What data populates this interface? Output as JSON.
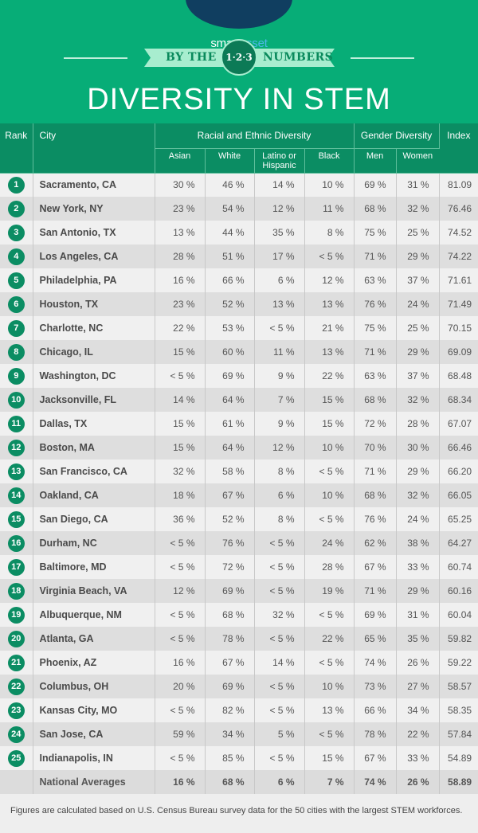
{
  "header": {
    "logo": {
      "smart": "smart",
      "asset": "asset"
    },
    "ribbon_left": "BY THE",
    "ribbon_badge": "1·2·3",
    "ribbon_right": "NUMBERS",
    "title": "DIVERSITY IN STEM"
  },
  "colors": {
    "primary_green": "#07ad77",
    "table_header": "#0b8d63",
    "logo_navy": "#103e60",
    "ribbon": "#a8edcf"
  },
  "table": {
    "headers": {
      "rank": "Rank",
      "city": "City",
      "racial_group": "Racial and Ethnic Diversity",
      "gender_group": "Gender Diversity",
      "index": "Index",
      "asian": "Asian",
      "white": "White",
      "latino": "Latino or Hispanic",
      "black": "Black",
      "men": "Men",
      "women": "Women"
    },
    "rows": [
      {
        "rank": "1",
        "city": "Sacramento, CA",
        "asian": "30 %",
        "white": "46 %",
        "latino": "14 %",
        "black": "10 %",
        "men": "69 %",
        "women": "31 %",
        "index": "81.09"
      },
      {
        "rank": "2",
        "city": "New York, NY",
        "asian": "23 %",
        "white": "54 %",
        "latino": "12 %",
        "black": "11 %",
        "men": "68 %",
        "women": "32 %",
        "index": "76.46"
      },
      {
        "rank": "3",
        "city": "San Antonio, TX",
        "asian": "13 %",
        "white": "44 %",
        "latino": "35 %",
        "black": "8 %",
        "men": "75 %",
        "women": "25 %",
        "index": "74.52"
      },
      {
        "rank": "4",
        "city": "Los Angeles, CA",
        "asian": "28 %",
        "white": "51 %",
        "latino": "17 %",
        "black": "< 5 %",
        "men": "71 %",
        "women": "29 %",
        "index": "74.22"
      },
      {
        "rank": "5",
        "city": "Philadelphia, PA",
        "asian": "16 %",
        "white": "66 %",
        "latino": "6 %",
        "black": "12 %",
        "men": "63 %",
        "women": "37 %",
        "index": "71.61"
      },
      {
        "rank": "6",
        "city": "Houston, TX",
        "asian": "23 %",
        "white": "52 %",
        "latino": "13 %",
        "black": "13 %",
        "men": "76 %",
        "women": "24 %",
        "index": "71.49"
      },
      {
        "rank": "7",
        "city": "Charlotte, NC",
        "asian": "22 %",
        "white": "53 %",
        "latino": "< 5 %",
        "black": "21 %",
        "men": "75 %",
        "women": "25 %",
        "index": "70.15"
      },
      {
        "rank": "8",
        "city": "Chicago, IL",
        "asian": "15 %",
        "white": "60 %",
        "latino": "11 %",
        "black": "13 %",
        "men": "71 %",
        "women": "29 %",
        "index": "69.09"
      },
      {
        "rank": "9",
        "city": "Washington, DC",
        "asian": "< 5 %",
        "white": "69 %",
        "latino": "9 %",
        "black": "22 %",
        "men": "63 %",
        "women": "37 %",
        "index": "68.48"
      },
      {
        "rank": "10",
        "city": "Jacksonville, FL",
        "asian": "14 %",
        "white": "64 %",
        "latino": "7 %",
        "black": "15 %",
        "men": "68 %",
        "women": "32 %",
        "index": "68.34"
      },
      {
        "rank": "11",
        "city": "Dallas, TX",
        "asian": "15 %",
        "white": "61 %",
        "latino": "9 %",
        "black": "15 %",
        "men": "72 %",
        "women": "28 %",
        "index": "67.07"
      },
      {
        "rank": "12",
        "city": "Boston, MA",
        "asian": "15 %",
        "white": "64 %",
        "latino": "12 %",
        "black": "10 %",
        "men": "70 %",
        "women": "30 %",
        "index": "66.46"
      },
      {
        "rank": "13",
        "city": "San Francisco, CA",
        "asian": "32 %",
        "white": "58 %",
        "latino": "8 %",
        "black": "< 5 %",
        "men": "71 %",
        "women": "29 %",
        "index": "66.20"
      },
      {
        "rank": "14",
        "city": "Oakland, CA",
        "asian": "18 %",
        "white": "67 %",
        "latino": "6 %",
        "black": "10 %",
        "men": "68 %",
        "women": "32 %",
        "index": "66.05"
      },
      {
        "rank": "15",
        "city": "San Diego, CA",
        "asian": "36 %",
        "white": "52 %",
        "latino": "8 %",
        "black": "< 5 %",
        "men": "76 %",
        "women": "24 %",
        "index": "65.25"
      },
      {
        "rank": "16",
        "city": "Durham, NC",
        "asian": "< 5 %",
        "white": "76 %",
        "latino": "< 5 %",
        "black": "24 %",
        "men": "62 %",
        "women": "38 %",
        "index": "64.27"
      },
      {
        "rank": "17",
        "city": "Baltimore, MD",
        "asian": "< 5 %",
        "white": "72 %",
        "latino": "< 5 %",
        "black": "28 %",
        "men": "67 %",
        "women": "33 %",
        "index": "60.74"
      },
      {
        "rank": "18",
        "city": "Virginia Beach, VA",
        "asian": "12 %",
        "white": "69 %",
        "latino": "< 5 %",
        "black": "19 %",
        "men": "71 %",
        "women": "29 %",
        "index": "60.16"
      },
      {
        "rank": "19",
        "city": "Albuquerque, NM",
        "asian": "< 5 %",
        "white": "68 %",
        "latino": "32 %",
        "black": "< 5 %",
        "men": "69 %",
        "women": "31 %",
        "index": "60.04"
      },
      {
        "rank": "20",
        "city": "Atlanta, GA",
        "asian": "< 5 %",
        "white": "78 %",
        "latino": "< 5 %",
        "black": "22 %",
        "men": "65 %",
        "women": "35 %",
        "index": "59.82"
      },
      {
        "rank": "21",
        "city": "Phoenix, AZ",
        "asian": "16 %",
        "white": "67 %",
        "latino": "14 %",
        "black": "< 5 %",
        "men": "74 %",
        "women": "26 %",
        "index": "59.22"
      },
      {
        "rank": "22",
        "city": "Columbus, OH",
        "asian": "20 %",
        "white": "69 %",
        "latino": "< 5 %",
        "black": "10 %",
        "men": "73 %",
        "women": "27 %",
        "index": "58.57"
      },
      {
        "rank": "23",
        "city": "Kansas City, MO",
        "asian": "< 5 %",
        "white": "82 %",
        "latino": "< 5 %",
        "black": "13 %",
        "men": "66 %",
        "women": "34 %",
        "index": "58.35"
      },
      {
        "rank": "24",
        "city": "San Jose, CA",
        "asian": "59 %",
        "white": "34 %",
        "latino": "5 %",
        "black": "< 5 %",
        "men": "78 %",
        "women": "22 %",
        "index": "57.84"
      },
      {
        "rank": "25",
        "city": "Indianapolis, IN",
        "asian": "< 5 %",
        "white": "85 %",
        "latino": "< 5 %",
        "black": "15 %",
        "men": "67 %",
        "women": "33 %",
        "index": "54.89"
      }
    ],
    "average": {
      "label": "National Averages",
      "asian": "16 %",
      "white": "68 %",
      "latino": "6 %",
      "black": "7 %",
      "men": "74 %",
      "women": "26 %",
      "index": "58.89"
    }
  },
  "footnote": "Figures are calculated based on U.S. Census Bureau survey data for the 50 cities with the largest STEM workforces."
}
